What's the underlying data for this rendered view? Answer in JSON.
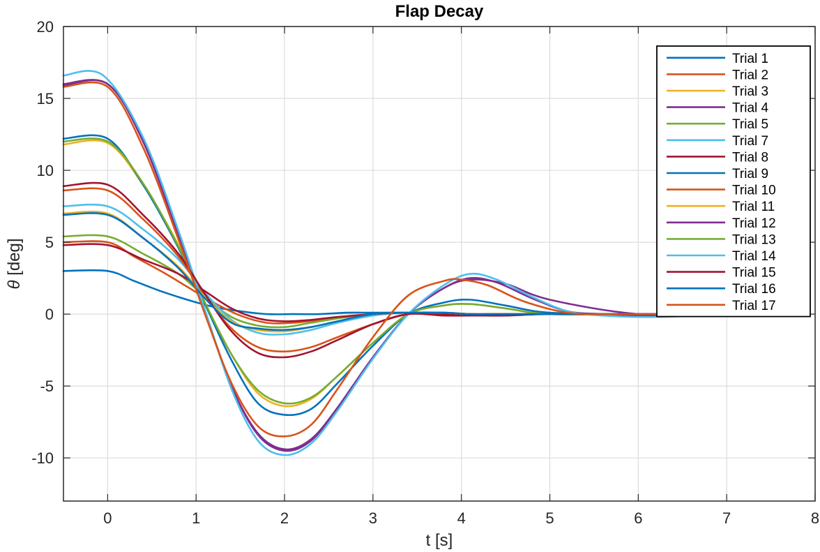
{
  "chart_data": {
    "type": "line",
    "title": "Flap Decay",
    "xlabel": "t [s]",
    "ylabel_symbol": "θ",
    "ylabel_text": " [deg]",
    "xlim": [
      -0.5,
      8
    ],
    "ylim": [
      -13,
      20
    ],
    "xticks": [
      0,
      1,
      2,
      3,
      4,
      5,
      6,
      7,
      8
    ],
    "yticks": [
      -10,
      -5,
      0,
      5,
      10,
      15,
      20
    ],
    "ytick_labels": [
      "-10",
      "-5",
      "0",
      "5",
      "10",
      "15",
      "20"
    ],
    "xtick_labels": [
      "0",
      "1",
      "2",
      "3",
      "4",
      "5",
      "6",
      "7",
      "8"
    ],
    "grid": true,
    "legend_position": "top-right",
    "series": [
      {
        "name": "Trial 1",
        "color": "#0072BD",
        "x": [
          -0.5,
          0,
          0.3,
          0.6,
          0.9,
          1.2,
          1.5,
          1.8,
          2.1,
          2.4,
          2.7,
          3.0,
          3.4,
          4.0,
          4.6,
          5.5,
          6.5
        ],
        "y": [
          3.0,
          3.0,
          2.3,
          1.6,
          1.0,
          0.5,
          0.2,
          0.0,
          0.0,
          0.0,
          0.1,
          0.1,
          0.1,
          0.0,
          0.0,
          0.0,
          0.0
        ]
      },
      {
        "name": "Trial 2",
        "color": "#D95319",
        "x": [
          -0.5,
          0,
          0.3,
          0.6,
          0.9,
          1.2,
          1.5,
          1.8,
          2.1,
          2.4,
          2.7,
          3.0,
          3.4,
          4.0,
          4.6,
          5.5,
          6.5
        ],
        "y": [
          5.0,
          5.0,
          4.0,
          3.0,
          1.9,
          0.8,
          -0.1,
          -0.6,
          -0.6,
          -0.4,
          -0.2,
          0.0,
          0.1,
          0.0,
          0.0,
          0.0,
          0.0
        ]
      },
      {
        "name": "Trial 3",
        "color": "#EDB120",
        "x": [
          -0.5,
          0,
          0.4,
          0.8,
          1.1,
          1.4,
          1.7,
          2.0,
          2.3,
          2.6,
          3.0,
          3.4,
          3.8,
          4.1,
          4.5,
          5.0,
          6.0,
          7.0
        ],
        "y": [
          11.8,
          11.9,
          9.0,
          4.8,
          0.8,
          -2.8,
          -5.5,
          -6.4,
          -5.9,
          -4.3,
          -2.0,
          0.0,
          0.6,
          0.7,
          0.4,
          0.0,
          0.0,
          0.0
        ]
      },
      {
        "name": "Trial 4",
        "color": "#7E2F8E",
        "x": [
          -0.5,
          0,
          0.4,
          0.8,
          1.1,
          1.4,
          1.7,
          2.0,
          2.3,
          2.6,
          3.0,
          3.4,
          3.8,
          4.1,
          4.4,
          4.8,
          5.2,
          5.6,
          6.2,
          7.0
        ],
        "y": [
          15.9,
          16.0,
          12.0,
          5.5,
          0.2,
          -5.0,
          -8.4,
          -9.5,
          -8.8,
          -6.5,
          -3.0,
          0.0,
          1.8,
          2.5,
          2.2,
          1.1,
          0.2,
          0.0,
          -0.1,
          0.0
        ]
      },
      {
        "name": "Trial 5",
        "color": "#77AC30",
        "x": [
          -0.5,
          0,
          0.4,
          0.8,
          1.1,
          1.4,
          1.7,
          2.0,
          2.3,
          2.6,
          3.0,
          3.4,
          3.8,
          4.1,
          4.5,
          5.0,
          6.0,
          7.0
        ],
        "y": [
          5.4,
          5.4,
          4.2,
          2.8,
          1.2,
          -0.2,
          -0.8,
          -0.9,
          -0.6,
          -0.3,
          0.0,
          0.1,
          0.1,
          0.0,
          0.0,
          0.0,
          0.0,
          0.0
        ]
      },
      {
        "name": "Trial 7",
        "color": "#4DBEEE",
        "x": [
          -0.5,
          0,
          0.4,
          0.8,
          1.1,
          1.4,
          1.7,
          2.0,
          2.3,
          2.6,
          3.0,
          3.4,
          3.8,
          4.1,
          4.4,
          4.8,
          5.2,
          5.6,
          6.2,
          7.0
        ],
        "y": [
          7.5,
          7.5,
          5.9,
          3.8,
          1.5,
          -0.4,
          -1.3,
          -1.4,
          -1.1,
          -0.6,
          -0.1,
          0.1,
          0.1,
          0.0,
          0.0,
          0.0,
          0.0,
          0.0,
          0.0,
          0.0
        ]
      },
      {
        "name": "Trial 8",
        "color": "#A2142F",
        "x": [
          -0.5,
          0,
          0.4,
          0.8,
          1.1,
          1.4,
          1.7,
          2.0,
          2.3,
          2.6,
          3.0,
          3.4,
          3.8,
          4.1,
          4.5,
          5.0,
          6.0,
          7.0
        ],
        "y": [
          4.8,
          4.8,
          3.8,
          2.8,
          1.6,
          0.4,
          -0.3,
          -0.5,
          -0.4,
          -0.2,
          0.0,
          0.1,
          0.0,
          0.0,
          0.0,
          0.0,
          0.0,
          0.0
        ]
      },
      {
        "name": "Trial 9",
        "color": "#0072BD",
        "x": [
          -0.5,
          0,
          0.4,
          0.8,
          1.1,
          1.4,
          1.7,
          2.0,
          2.3,
          2.6,
          3.0,
          3.4,
          3.8,
          4.1,
          4.5,
          5.0,
          6.0,
          7.0
        ],
        "y": [
          12.2,
          12.2,
          9.0,
          4.6,
          0.7,
          -3.2,
          -6.2,
          -7.0,
          -6.6,
          -4.8,
          -2.2,
          0.0,
          0.8,
          1.0,
          0.6,
          0.1,
          0.0,
          0.0
        ]
      },
      {
        "name": "Trial 10",
        "color": "#D95319",
        "x": [
          -0.5,
          0,
          0.4,
          0.8,
          1.1,
          1.4,
          1.7,
          2.0,
          2.3,
          2.6,
          3.0,
          3.4,
          3.8,
          4.1,
          4.4,
          4.8,
          5.2,
          5.6,
          6.2,
          7.0
        ],
        "y": [
          8.6,
          8.6,
          6.6,
          4.0,
          1.3,
          -1.0,
          -2.3,
          -2.6,
          -2.3,
          -1.6,
          -0.7,
          0.0,
          0.1,
          0.0,
          0.0,
          0.0,
          0.0,
          0.0,
          0.0,
          0.0
        ]
      },
      {
        "name": "Trial 11",
        "color": "#EDB120",
        "x": [
          -0.5,
          0,
          0.4,
          0.8,
          1.1,
          1.4,
          1.7,
          2.0,
          2.3,
          2.6,
          3.0,
          3.4,
          3.8,
          4.1,
          4.5,
          5.0,
          6.0,
          7.0
        ],
        "y": [
          7.0,
          7.0,
          5.3,
          3.3,
          1.2,
          -0.5,
          -1.1,
          -1.2,
          -0.9,
          -0.5,
          0.0,
          0.1,
          0.1,
          0.0,
          0.0,
          0.0,
          0.0,
          0.0
        ]
      },
      {
        "name": "Trial 12",
        "color": "#7E2F8E",
        "x": [
          -0.5,
          0,
          0.4,
          0.8,
          1.1,
          1.4,
          1.7,
          2.0,
          2.3,
          2.6,
          3.0,
          3.4,
          3.8,
          4.1,
          4.5,
          5.0,
          6.0,
          7.0
        ],
        "y": [
          16.0,
          16.0,
          12.1,
          5.6,
          0.2,
          -5.0,
          -8.3,
          -9.4,
          -8.7,
          -6.5,
          -3.0,
          0.0,
          1.8,
          2.4,
          2.1,
          1.0,
          0.0,
          0.0
        ]
      },
      {
        "name": "Trial 13",
        "color": "#77AC30",
        "x": [
          -0.5,
          0,
          0.4,
          0.8,
          1.1,
          1.4,
          1.7,
          2.0,
          2.3,
          2.6,
          3.0,
          3.4,
          3.8,
          4.1,
          4.5,
          5.0,
          6.0,
          7.0
        ],
        "y": [
          12.0,
          12.0,
          9.1,
          4.7,
          0.8,
          -2.8,
          -5.3,
          -6.2,
          -5.8,
          -4.3,
          -2.0,
          0.0,
          0.6,
          0.7,
          0.4,
          0.0,
          0.0,
          0.0
        ]
      },
      {
        "name": "Trial 14",
        "color": "#4DBEEE",
        "x": [
          -0.5,
          -0.05,
          0.4,
          0.8,
          1.1,
          1.4,
          1.7,
          2.0,
          2.3,
          2.6,
          3.0,
          3.4,
          3.8,
          4.1,
          4.4,
          4.8,
          5.2,
          5.6,
          6.2,
          7.0
        ],
        "y": [
          16.6,
          16.6,
          12.3,
          5.8,
          0.3,
          -5.2,
          -8.8,
          -9.8,
          -9.0,
          -6.7,
          -3.1,
          0.0,
          2.0,
          2.8,
          2.4,
          1.2,
          0.2,
          -0.1,
          -0.2,
          0.0
        ]
      },
      {
        "name": "Trial 15",
        "color": "#A2142F",
        "x": [
          -0.5,
          0,
          0.4,
          0.8,
          1.1,
          1.4,
          1.7,
          2.0,
          2.3,
          2.6,
          3.0,
          3.4,
          3.8,
          4.1,
          4.5,
          5.0,
          6.0,
          7.0
        ],
        "y": [
          8.9,
          9.0,
          6.9,
          4.2,
          1.4,
          -1.2,
          -2.7,
          -3.0,
          -2.6,
          -1.8,
          -0.7,
          0.0,
          -0.1,
          -0.1,
          -0.1,
          0.0,
          0.0,
          0.0
        ]
      },
      {
        "name": "Trial 16",
        "color": "#0072BD",
        "x": [
          -0.5,
          0,
          0.4,
          0.8,
          1.1,
          1.4,
          1.7,
          2.0,
          2.3,
          2.6,
          3.0,
          3.4,
          3.8,
          4.1,
          4.5,
          5.0,
          6.0,
          7.0
        ],
        "y": [
          6.9,
          6.9,
          5.3,
          3.2,
          1.1,
          -0.6,
          -1.0,
          -1.1,
          -0.9,
          -0.5,
          0.0,
          0.1,
          0.1,
          0.0,
          0.0,
          0.0,
          0.0,
          0.0
        ]
      },
      {
        "name": "Trial 17",
        "color": "#D95319",
        "x": [
          -0.5,
          0,
          0.4,
          0.8,
          1.1,
          1.4,
          1.7,
          2.0,
          2.3,
          2.6,
          3.0,
          3.4,
          3.8,
          4.0,
          4.3,
          4.7,
          5.2,
          5.7,
          6.2,
          7.0
        ],
        "y": [
          15.8,
          15.8,
          11.6,
          5.2,
          0.0,
          -4.8,
          -7.8,
          -8.5,
          -7.7,
          -5.2,
          -1.6,
          1.3,
          2.3,
          2.4,
          2.0,
          0.9,
          0.1,
          0.0,
          0.0,
          0.0
        ]
      }
    ]
  }
}
